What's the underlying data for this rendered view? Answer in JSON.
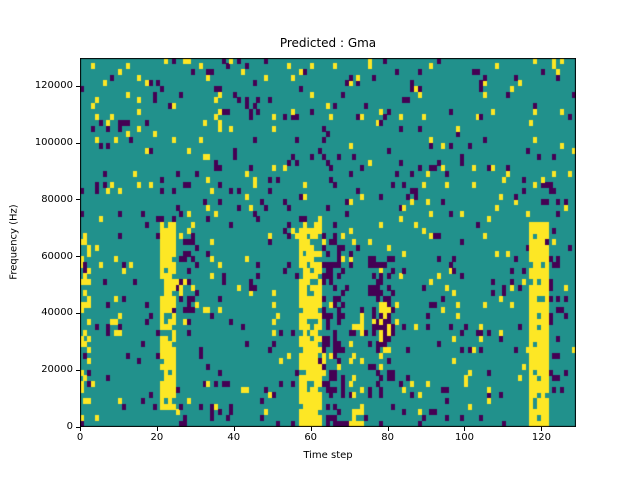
{
  "figure": {
    "background": "#ffffff"
  },
  "chart_data": {
    "type": "heatmap",
    "title": "Predicted : Gma",
    "xlabel": "Time step",
    "ylabel": "Frequency (Hz)",
    "x_ticks": [
      0,
      20,
      40,
      60,
      80,
      100,
      120
    ],
    "y_ticks": [
      0,
      20000,
      40000,
      60000,
      80000,
      100000,
      120000
    ],
    "x_range": [
      0,
      129
    ],
    "y_range": [
      0,
      130000
    ],
    "grid": {
      "cols": 129,
      "rows": 65
    },
    "legend": "none",
    "colors": {
      "background": "#21918c",
      "low": "#440154",
      "high": "#fde725",
      "axis": "#000000"
    },
    "noise": {
      "seed": 7,
      "dark_density": 0.05,
      "yellow_density": 0.035
    },
    "bands": [
      {
        "x0": 0,
        "x1": 3,
        "y0": 4,
        "y1": 36,
        "color": "high",
        "density": 0.3
      },
      {
        "x0": 21,
        "x1": 25,
        "y0": 3,
        "y1": 36,
        "color": "high",
        "density": 0.7
      },
      {
        "x0": 22,
        "x1": 24,
        "y0": 20,
        "y1": 35,
        "color": "high",
        "density": 0.95
      },
      {
        "x0": 26,
        "x1": 31,
        "y0": 18,
        "y1": 34,
        "color": "low",
        "density": 0.3
      },
      {
        "x0": 57,
        "x1": 63,
        "y0": 0,
        "y1": 36,
        "color": "high",
        "density": 0.8
      },
      {
        "x0": 63,
        "x1": 69,
        "y0": 0,
        "y1": 34,
        "color": "low",
        "density": 0.35
      },
      {
        "x0": 70,
        "x1": 74,
        "y0": 0,
        "y1": 20,
        "color": "high",
        "density": 0.25
      },
      {
        "x0": 75,
        "x1": 82,
        "y0": 4,
        "y1": 30,
        "color": "low",
        "density": 0.35
      },
      {
        "x0": 78,
        "x1": 81,
        "y0": 10,
        "y1": 22,
        "color": "high",
        "density": 0.4
      },
      {
        "x0": 117,
        "x1": 122,
        "y0": 0,
        "y1": 36,
        "color": "high",
        "density": 0.85
      },
      {
        "x0": 122,
        "x1": 125,
        "y0": 8,
        "y1": 30,
        "color": "low",
        "density": 0.3
      }
    ]
  }
}
